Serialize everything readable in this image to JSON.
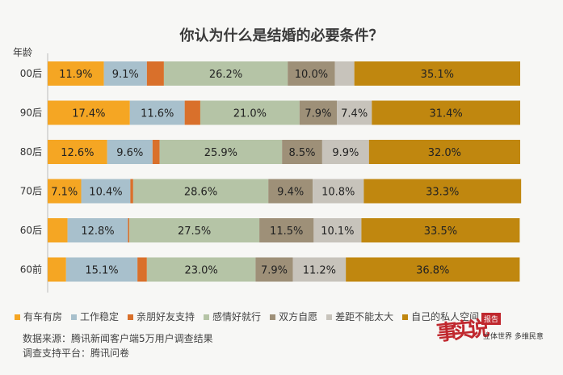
{
  "chart_data": {
    "type": "bar",
    "orientation": "horizontal",
    "stacked": true,
    "title": "你认为什么是结婚的必要条件？",
    "ylabel": "年龄",
    "xlim": [
      0,
      100
    ],
    "categories": [
      "00后",
      "90后",
      "80后",
      "70后",
      "60后",
      "60前"
    ],
    "series": [
      {
        "name": "有车有房",
        "color": "#f5a623",
        "values": [
          11.9,
          17.4,
          12.6,
          7.1,
          4.2,
          3.9
        ]
      },
      {
        "name": "工作稳定",
        "color": "#a8c0cc",
        "values": [
          9.1,
          11.6,
          9.6,
          10.4,
          12.8,
          15.1
        ]
      },
      {
        "name": "亲朋好友支持",
        "color": "#d9702b",
        "values": [
          3.6,
          3.3,
          1.5,
          0.6,
          0.3,
          2.0
        ]
      },
      {
        "name": "感情好就行",
        "color": "#b5c4a6",
        "values": [
          26.2,
          21.0,
          25.9,
          28.6,
          27.5,
          23.0
        ]
      },
      {
        "name": "双方自愿",
        "color": "#9e9078",
        "values": [
          10.0,
          7.9,
          8.5,
          9.4,
          11.5,
          7.9
        ]
      },
      {
        "name": "差距不能太大",
        "color": "#c7c3bb",
        "values": [
          4.1,
          7.4,
          9.9,
          10.8,
          10.1,
          11.2
        ]
      },
      {
        "name": "自己的私人空间",
        "color": "#c0870f",
        "values": [
          35.1,
          31.4,
          32.0,
          33.3,
          33.5,
          36.8
        ]
      }
    ],
    "label_format": "{v}%",
    "legend_position": "bottom",
    "grid": false
  },
  "footer": {
    "source": "数据来源：腾讯新闻客户端5万用户调查结果",
    "platform": "调查支持平台：腾讯问卷"
  },
  "logo": {
    "glyphs": "事实说",
    "tag": "报告",
    "slogan": "立体世界 多维民意"
  }
}
